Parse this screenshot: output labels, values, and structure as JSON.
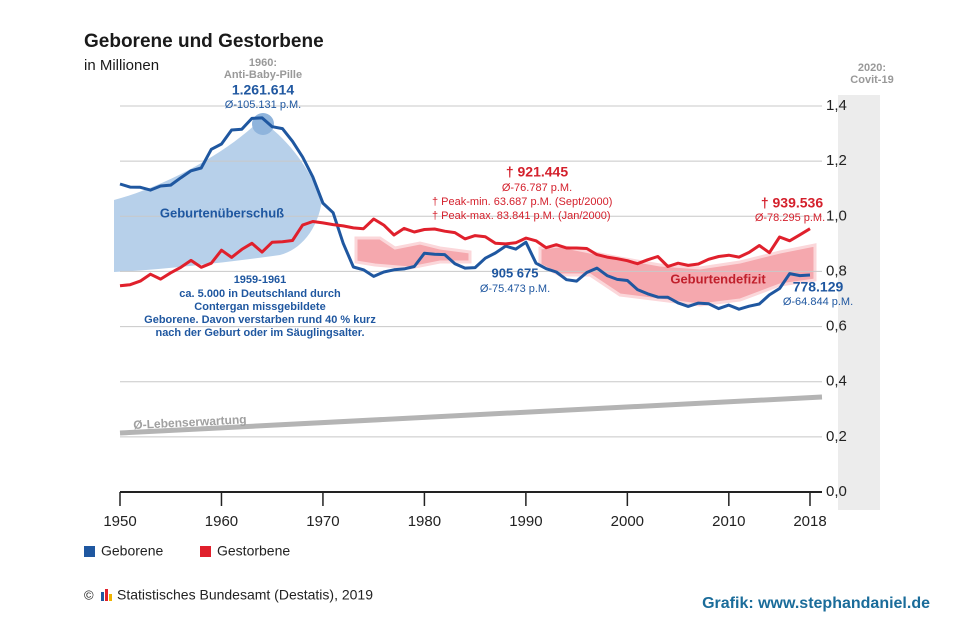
{
  "chart_data": {
    "type": "line",
    "title": "Geborene und Gestorbene",
    "subtitle": "in Millionen",
    "x": [
      1950,
      1951,
      1952,
      1953,
      1954,
      1955,
      1956,
      1957,
      1958,
      1959,
      1960,
      1961,
      1962,
      1963,
      1964,
      1965,
      1966,
      1967,
      1968,
      1969,
      1970,
      1971,
      1972,
      1973,
      1974,
      1975,
      1976,
      1977,
      1978,
      1979,
      1980,
      1981,
      1982,
      1983,
      1984,
      1985,
      1986,
      1987,
      1988,
      1989,
      1990,
      1991,
      1992,
      1993,
      1994,
      1995,
      1996,
      1997,
      1998,
      1999,
      2000,
      2001,
      2002,
      2003,
      2004,
      2005,
      2006,
      2007,
      2008,
      2009,
      2010,
      2011,
      2012,
      2013,
      2014,
      2015,
      2016,
      2017,
      2018
    ],
    "series": [
      {
        "name": "Geborene",
        "color": "#1f57a0",
        "values": [
          1.117,
          1.106,
          1.105,
          1.095,
          1.11,
          1.113,
          1.14,
          1.165,
          1.175,
          1.243,
          1.262,
          1.313,
          1.316,
          1.355,
          1.357,
          1.325,
          1.318,
          1.272,
          1.215,
          1.143,
          1.048,
          1.013,
          0.902,
          0.816,
          0.806,
          0.782,
          0.798,
          0.806,
          0.809,
          0.818,
          0.866,
          0.862,
          0.861,
          0.828,
          0.812,
          0.814,
          0.848,
          0.867,
          0.892,
          0.881,
          0.906,
          0.83,
          0.81,
          0.798,
          0.77,
          0.765,
          0.796,
          0.812,
          0.785,
          0.771,
          0.767,
          0.734,
          0.719,
          0.707,
          0.706,
          0.686,
          0.673,
          0.685,
          0.683,
          0.665,
          0.678,
          0.663,
          0.674,
          0.682,
          0.715,
          0.738,
          0.792,
          0.785,
          0.787
        ]
      },
      {
        "name": "Gestorbene",
        "color": "#e0202c",
        "values": [
          0.748,
          0.752,
          0.765,
          0.79,
          0.772,
          0.795,
          0.815,
          0.84,
          0.815,
          0.83,
          0.877,
          0.851,
          0.88,
          0.902,
          0.87,
          0.906,
          0.908,
          0.912,
          0.968,
          0.981,
          0.976,
          0.97,
          0.965,
          0.958,
          0.955,
          0.99,
          0.968,
          0.932,
          0.956,
          0.943,
          0.952,
          0.954,
          0.946,
          0.941,
          0.918,
          0.93,
          0.926,
          0.902,
          0.9,
          0.904,
          0.921,
          0.911,
          0.886,
          0.897,
          0.885,
          0.885,
          0.883,
          0.861,
          0.852,
          0.846,
          0.839,
          0.828,
          0.842,
          0.854,
          0.818,
          0.83,
          0.822,
          0.827,
          0.844,
          0.854,
          0.859,
          0.852,
          0.869,
          0.894,
          0.868,
          0.925,
          0.911,
          0.933,
          0.955
        ]
      }
    ],
    "xlim": [
      1950,
      2018
    ],
    "xticks": [
      1950,
      1960,
      1970,
      1980,
      1990,
      2000,
      2010,
      2018
    ],
    "ylim": [
      0,
      1.4
    ],
    "yticks": [
      {
        "value": 0,
        "label": "0,0"
      },
      {
        "value": 0.2,
        "label": "0,2"
      },
      {
        "value": 0.4,
        "label": "0,4"
      },
      {
        "value": 0.6,
        "label": "0,6"
      },
      {
        "value": 0.8,
        "label": "0,8"
      },
      {
        "value": 1.0,
        "label": "1,0"
      },
      {
        "value": 1.2,
        "label": "1,2"
      },
      {
        "value": 1.4,
        "label": "1,4"
      }
    ],
    "grid": true,
    "annotations": [
      "1960:",
      "Anti-Baby-Pille",
      "1.261.614",
      "Ø-105.131  p.M.",
      "Geburtenüberschuß",
      "1959-1961",
      "ca. 5.000 in Deutschland durch",
      "Contergan missgebildete",
      "Geborene. Davon verstarben rund 40 % kurz",
      "nach der Geburt oder im Säuglingsalter.",
      "† 921.445",
      "Ø-76.787 p.M.",
      "† Peak-min. 63.687 p.M. (Sept/2000)",
      "† Peak-max. 83.841 p.M.  (Jan/2000)",
      "905 675",
      "Ø-75.473 p.M.",
      "Geburtendefizit",
      "† 939.536",
      "Ø-78.295 p.M.",
      "778.129",
      "Ø-64.844 p.M.",
      "2020:",
      "Covit-19",
      "Ø-Lebenserwartung"
    ],
    "source": "Statistisches Bundesamt (Destatis), 2019",
    "copyright": "©",
    "credit": "Grafik: www.stephandaniel.de"
  }
}
